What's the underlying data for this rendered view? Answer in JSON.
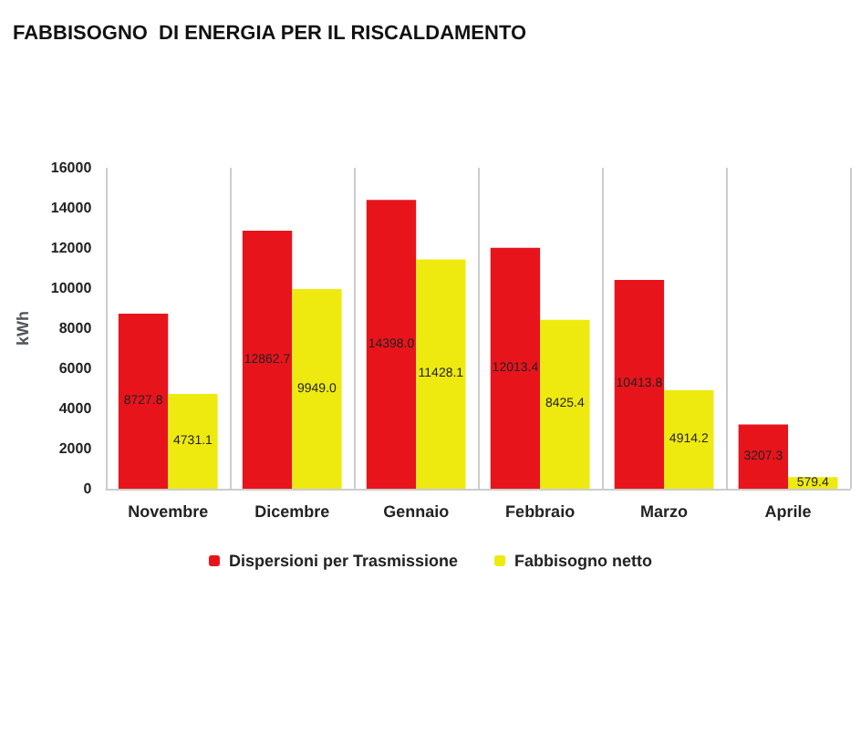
{
  "chart_data": {
    "type": "bar",
    "title": "FABBISOGNO  DI ENERGIA PER IL RISCALDAMENTO",
    "ylabel": "kWh",
    "categories": [
      "Novembre",
      "Dicembre",
      "Gennaio",
      "Febbraio",
      "Marzo",
      "Aprile"
    ],
    "series": [
      {
        "name": "Dispersioni per Trasmissione",
        "color": "#e8141c",
        "values": [
          8727.8,
          12862.7,
          14398.0,
          12013.4,
          10413.8,
          3207.3
        ],
        "value_labels": [
          "8727.8",
          "12862.7",
          "14398.0",
          "12013.4",
          "10413.8",
          "3207.3"
        ]
      },
      {
        "name": "Fabbisogno netto",
        "color": "#eeea10",
        "values": [
          4731.1,
          9949.0,
          11428.1,
          8425.4,
          4914.2,
          579.4
        ],
        "value_labels": [
          "4731.1",
          "9949.0",
          "11428.1",
          "8425.4",
          "4914.2",
          "579.4"
        ]
      }
    ],
    "ylim": [
      0,
      16000
    ],
    "yticks": [
      0,
      2000,
      4000,
      6000,
      8000,
      10000,
      12000,
      14000,
      16000
    ],
    "grid": "x",
    "legend": "bottom"
  }
}
